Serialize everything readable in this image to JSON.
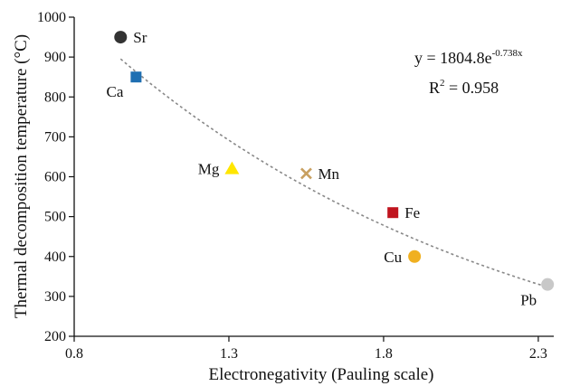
{
  "chart_data": {
    "type": "scatter",
    "xlabel": "Electronegativity (Pauling scale)",
    "ylabel": "Thermal decomposition temperature (°C)",
    "xlim": [
      0.8,
      2.35
    ],
    "ylim": [
      200,
      1000
    ],
    "xticks": [
      "0.8",
      "1.3",
      "1.8",
      "2.3"
    ],
    "yticks": [
      "200",
      "300",
      "400",
      "500",
      "600",
      "700",
      "800",
      "900",
      "1000"
    ],
    "grid": false,
    "points": [
      {
        "label": "Sr",
        "x": 0.95,
        "y": 950,
        "marker": "circle",
        "color": "#333333"
      },
      {
        "label": "Ca",
        "x": 1.0,
        "y": 850,
        "marker": "square",
        "color": "#1f6fb2"
      },
      {
        "label": "Mg",
        "x": 1.31,
        "y": 620,
        "marker": "triangle",
        "color": "#ffe600"
      },
      {
        "label": "Mn",
        "x": 1.55,
        "y": 608,
        "marker": "x",
        "color": "#c8a060"
      },
      {
        "label": "Fe",
        "x": 1.83,
        "y": 510,
        "marker": "square",
        "color": "#c0141e"
      },
      {
        "label": "Cu",
        "x": 1.9,
        "y": 400,
        "marker": "circle",
        "color": "#f0b020"
      },
      {
        "label": "Pb",
        "x": 2.33,
        "y": 330,
        "marker": "circle",
        "color": "#c8c8c8"
      }
    ],
    "trendline": {
      "type": "exponential",
      "a": 1804.8,
      "b": -0.738,
      "x_range": [
        0.95,
        2.33
      ],
      "equation_base": "y = 1804.8e",
      "equation_exp": "-0.738x",
      "r2_base": "R",
      "r2_sup": "2",
      "r2_value": " = 0.958",
      "color": "#888888"
    }
  }
}
